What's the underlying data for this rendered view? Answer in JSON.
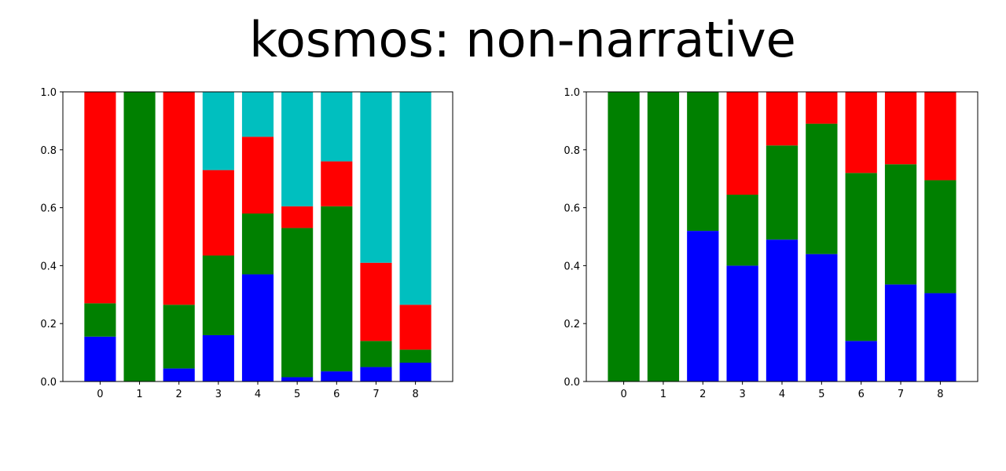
{
  "figure": {
    "title": "kosmos: non-narrative"
  },
  "chart_data": [
    {
      "type": "bar",
      "stacked": true,
      "categories": [
        "0",
        "1",
        "2",
        "3",
        "4",
        "5",
        "6",
        "7",
        "8"
      ],
      "ylim": [
        0,
        1.0
      ],
      "yticks": [
        "0.0",
        "0.2",
        "0.4",
        "0.6",
        "0.8",
        "1.0"
      ],
      "grid": false,
      "series": [
        {
          "color": "#0000ff",
          "values": [
            0.155,
            0.0,
            0.045,
            0.16,
            0.37,
            0.015,
            0.035,
            0.05,
            0.065
          ]
        },
        {
          "color": "#008000",
          "values": [
            0.115,
            1.0,
            0.22,
            0.275,
            0.21,
            0.515,
            0.57,
            0.09,
            0.045
          ]
        },
        {
          "color": "#ff0000",
          "values": [
            0.73,
            0.0,
            0.735,
            0.295,
            0.265,
            0.075,
            0.155,
            0.27,
            0.155
          ]
        },
        {
          "color": "#00bfbf",
          "values": [
            0.0,
            0.0,
            0.0,
            0.27,
            0.155,
            0.395,
            0.24,
            0.59,
            0.735
          ]
        }
      ]
    },
    {
      "type": "bar",
      "stacked": true,
      "categories": [
        "0",
        "1",
        "2",
        "3",
        "4",
        "5",
        "6",
        "7",
        "8"
      ],
      "ylim": [
        0,
        1.0
      ],
      "yticks": [
        "0.0",
        "0.2",
        "0.4",
        "0.6",
        "0.8",
        "1.0"
      ],
      "grid": false,
      "series": [
        {
          "color": "#0000ff",
          "values": [
            0.0,
            0.0,
            0.52,
            0.4,
            0.49,
            0.44,
            0.14,
            0.335,
            0.305
          ]
        },
        {
          "color": "#008000",
          "values": [
            1.0,
            1.0,
            0.48,
            0.245,
            0.325,
            0.45,
            0.58,
            0.415,
            0.39
          ]
        },
        {
          "color": "#ff0000",
          "values": [
            0.0,
            0.0,
            0.0,
            0.355,
            0.185,
            0.11,
            0.28,
            0.25,
            0.305
          ]
        }
      ]
    }
  ]
}
